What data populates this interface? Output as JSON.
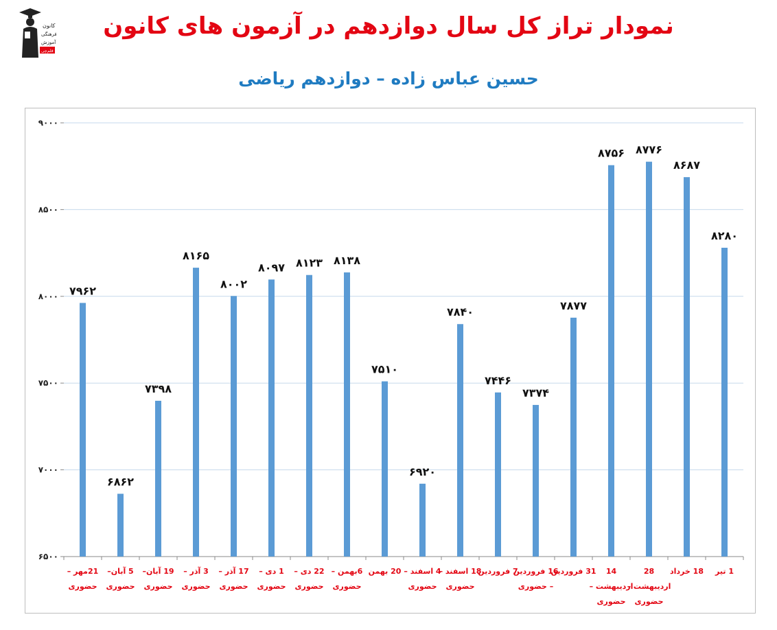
{
  "header": {
    "title": "نمودار تراز کل سال دوازدهم در آزمون های کانون",
    "subtitle": "حسین عباس زاده – دوازدهم ریاضی",
    "logo_text": [
      "کانون",
      "فرهنگی",
      "آموزش",
      "قلم‌چی"
    ]
  },
  "colors": {
    "title": "#e30613",
    "subtitle": "#1f7bc1",
    "bar": "#5b9bd5",
    "category_label": "#e30613",
    "gridline": "#c6d9ec"
  },
  "chart_data": {
    "type": "bar",
    "title": "",
    "xlabel": "",
    "ylabel": "",
    "ylim": [
      6500,
      9000
    ],
    "yticks": [
      6500,
      7000,
      7500,
      8000,
      8500,
      9000
    ],
    "ytick_labels": [
      "۶۵۰۰",
      "۷۰۰۰",
      "۷۵۰۰",
      "۸۰۰۰",
      "۸۵۰۰",
      "۹۰۰۰"
    ],
    "grid": true,
    "legend": "none",
    "categories": [
      [
        "21مهر –",
        "حضوری"
      ],
      [
        "5 آبان–",
        "حضوری"
      ],
      [
        "19 آبان–",
        "حضوری"
      ],
      [
        "3 آذر –",
        "حضوری"
      ],
      [
        "17 آذر –",
        "حضوری"
      ],
      [
        "1 دی –",
        "حضوری"
      ],
      [
        "22 دی –",
        "حضوری"
      ],
      [
        "6بهمن –",
        "حضوری"
      ],
      [
        "20 بهمن"
      ],
      [
        "4 اسفند –",
        "حضوری"
      ],
      [
        "18 اسفند –",
        "حضوری"
      ],
      [
        "7 فروردین"
      ],
      [
        "16 فروردین",
        "– حضوری"
      ],
      [
        "31 فروردین"
      ],
      [
        "14",
        "اردیبهشت –",
        "حضوری"
      ],
      [
        "28",
        "اردیبهشت –",
        "حضوری"
      ],
      [
        "18 خرداد"
      ],
      [
        "1 تیر"
      ]
    ],
    "values": [
      7962,
      6862,
      7398,
      8165,
      8002,
      8097,
      8123,
      8138,
      7510,
      6920,
      7840,
      7446,
      7374,
      7877,
      8756,
      8776,
      8687,
      8280
    ],
    "value_labels": [
      "۷۹۶۲",
      "۶۸۶۲",
      "۷۳۹۸",
      "۸۱۶۵",
      "۸۰۰۲",
      "۸۰۹۷",
      "۸۱۲۳",
      "۸۱۳۸",
      "۷۵۱۰",
      "۶۹۲۰",
      "۷۸۴۰",
      "۷۴۴۶",
      "۷۳۷۴",
      "۷۸۷۷",
      "۸۷۵۶",
      "۸۷۷۶",
      "۸۶۸۷",
      "۸۲۸۰"
    ]
  }
}
